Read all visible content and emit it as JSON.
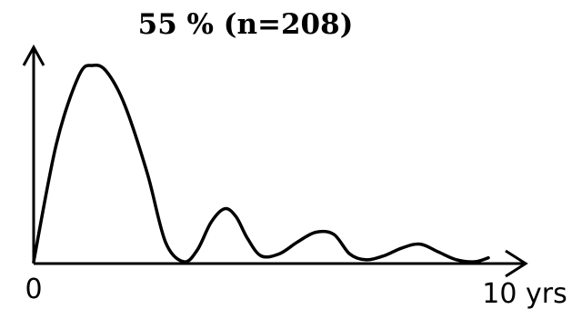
{
  "chart_data": {
    "type": "line",
    "title": "55 % (n=208)",
    "x_tick_labels": [
      "0",
      "10 yrs"
    ],
    "series": [
      {
        "x": [
          0,
          0.5,
          1.0,
          1.3,
          1.6,
          2.0,
          2.5,
          2.9,
          3.3,
          3.6,
          3.9,
          4.2,
          4.45,
          4.7,
          5.0,
          5.4,
          5.8,
          6.2,
          6.6,
          6.95,
          7.3,
          7.7,
          8.1,
          8.5,
          8.9,
          9.3,
          9.7,
          10.0
        ],
        "y": [
          0,
          0.6,
          0.95,
          1.0,
          0.97,
          0.8,
          0.45,
          0.1,
          0.0,
          0.06,
          0.2,
          0.27,
          0.23,
          0.12,
          0.03,
          0.04,
          0.1,
          0.15,
          0.14,
          0.04,
          0.01,
          0.03,
          0.07,
          0.09,
          0.05,
          0.01,
          0.0,
          0.02
        ]
      }
    ],
    "xlim": [
      0,
      10
    ],
    "ylim": [
      0,
      1.1
    ],
    "grid": false,
    "colors": {
      "line": "#000000",
      "axis": "#000000",
      "text": "#000000"
    }
  }
}
